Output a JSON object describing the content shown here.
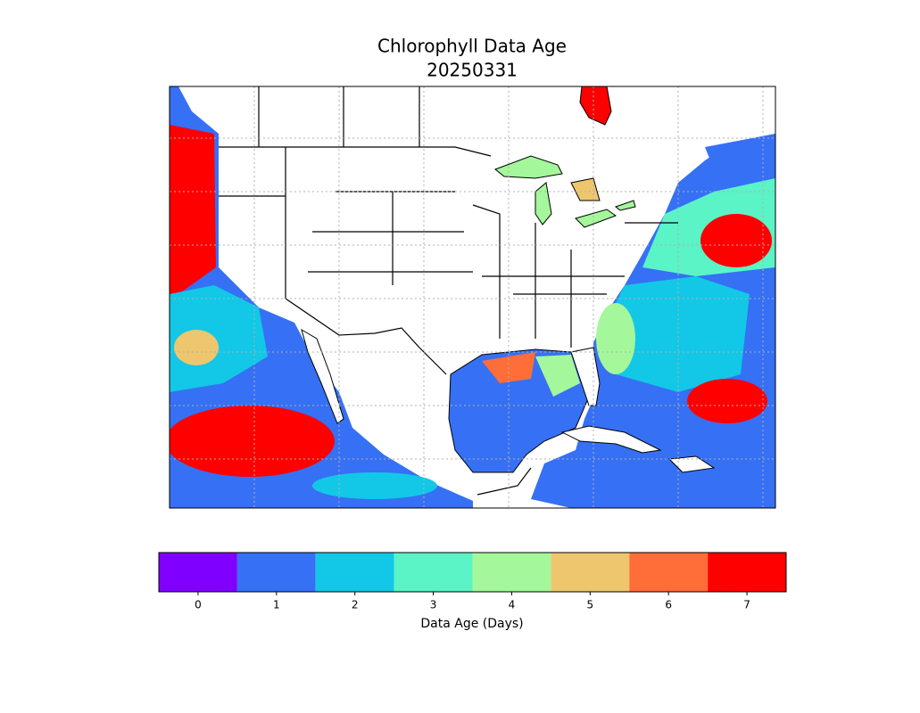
{
  "title": "Chlorophyll Data Age",
  "subtitle": "20250331",
  "colorbar": {
    "label": "Data Age (Days)",
    "ticks": [
      0,
      1,
      2,
      3,
      4,
      5,
      6,
      7
    ],
    "colors": [
      "#8000ff",
      "#3670f5",
      "#12c8e6",
      "#5af4c6",
      "#a4f79a",
      "#edc66e",
      "#ff6d38",
      "#ff0000"
    ]
  }
}
